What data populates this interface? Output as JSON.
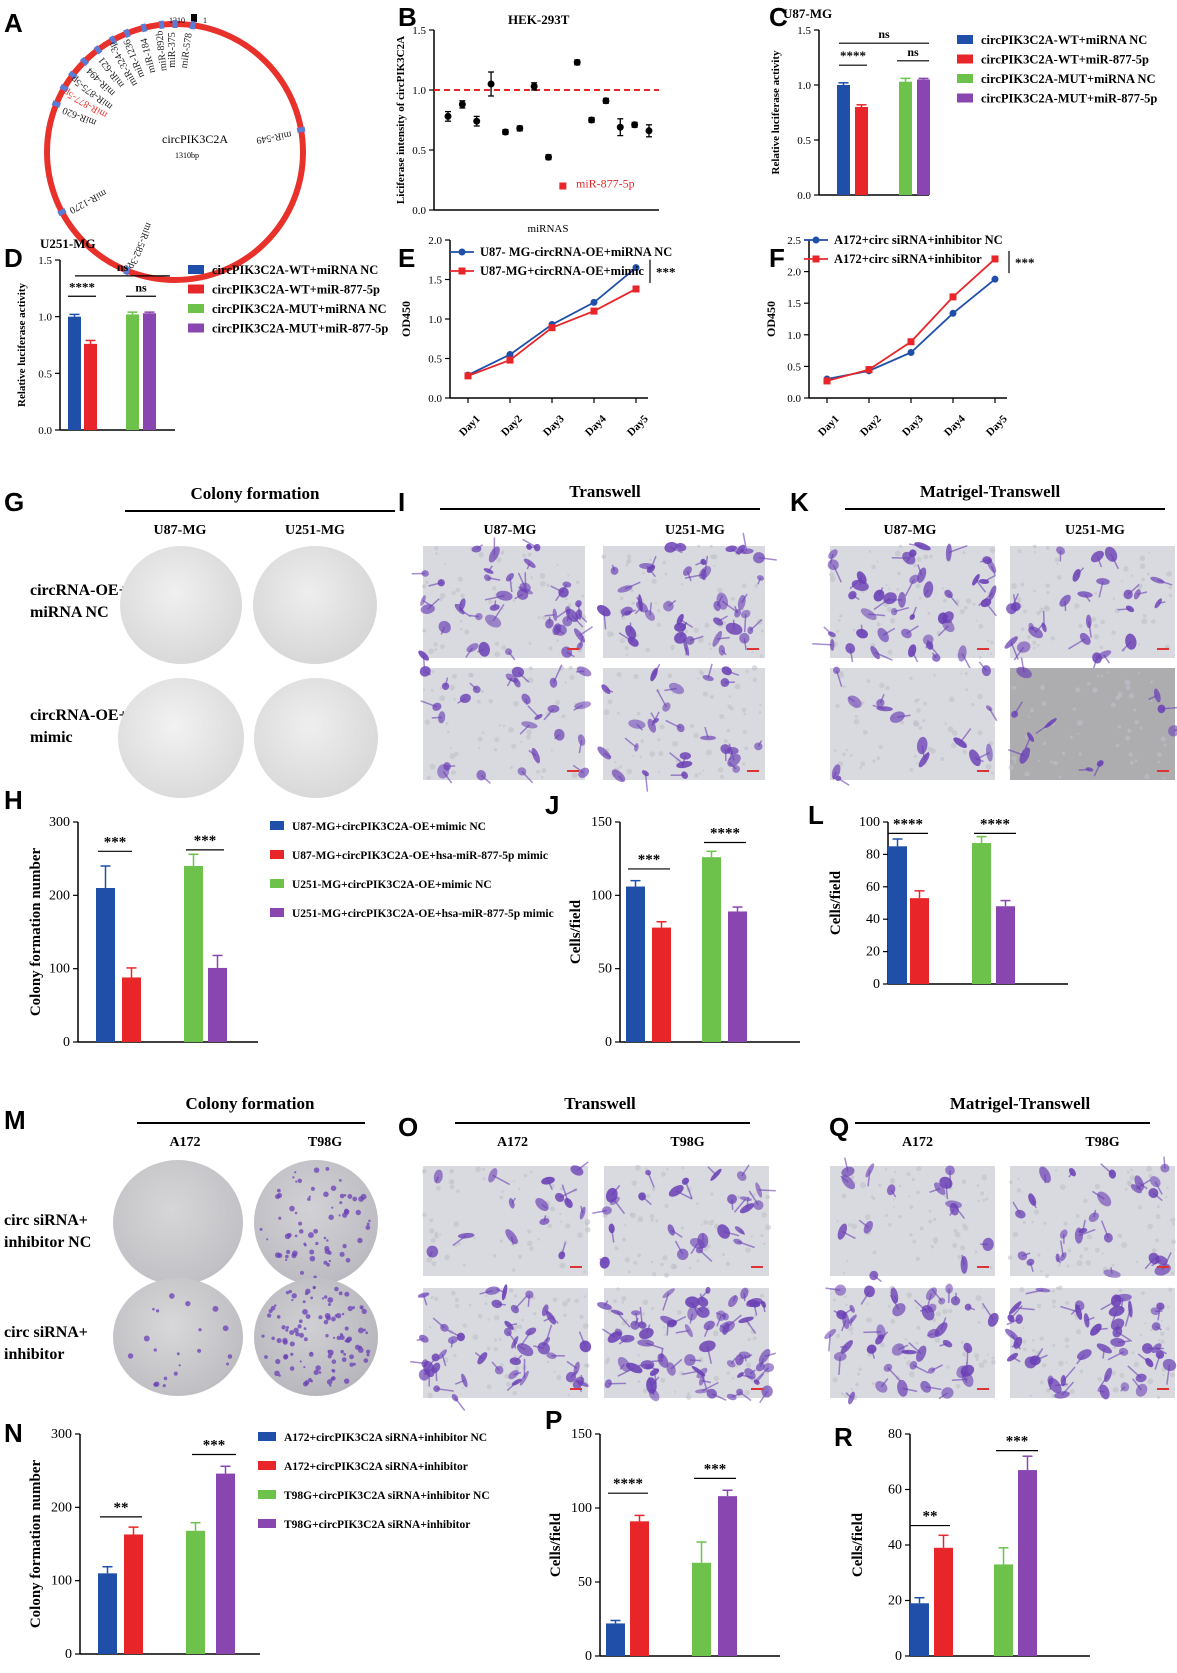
{
  "panels": {
    "A": "A",
    "B": "B",
    "C": "C",
    "D": "D",
    "E": "E",
    "F": "F",
    "G": "G",
    "H": "H",
    "I": "I",
    "J": "J",
    "K": "K",
    "L": "L",
    "M": "M",
    "N": "N",
    "O": "O",
    "P": "P",
    "Q": "Q",
    "R": "R"
  },
  "circle_map": {
    "center_name": "circPIK3C2A",
    "length": "1310bp",
    "top_mark_left": "1310",
    "top_mark_right": "1",
    "mirnas": [
      "miR-578",
      "miR-375",
      "miR-892b",
      "miR-184",
      "miR-1236",
      "miR-324-3p",
      "miR-621",
      "miR-494",
      "miR-875-5p",
      "miR-877-5p",
      "miR-620",
      "miR-1270",
      "miR-582-3p",
      "miR-549"
    ],
    "highlight": "miR-877-5p",
    "highlight_color": "#e8312a",
    "ring_color": "#e8312a",
    "site_color": "#5b7bd5"
  },
  "images": {
    "colony_top": {
      "title": "Colony formation",
      "cols": [
        "U87-MG",
        "U251-MG"
      ],
      "rows": [
        "circRNA-OE+\nmiRNA NC",
        "circRNA-OE+\nmimic"
      ]
    },
    "transwell_top": {
      "title": "Transwell",
      "cols": [
        "U87-MG",
        "U251-MG"
      ]
    },
    "matrigel_top": {
      "title": "Matrigel-Transwell",
      "cols": [
        "U87-MG",
        "U251-MG"
      ]
    },
    "colony_bottom": {
      "title": "Colony formation",
      "cols": [
        "A172",
        "T98G"
      ],
      "rows": [
        "circ siRNA+\ninhibitor NC",
        "circ siRNA+\ninhibitor"
      ]
    },
    "transwell_bottom": {
      "title": "Transwell",
      "cols": [
        "A172",
        "T98G"
      ]
    },
    "matrigel_bottom": {
      "title": "Matrigel-Transwell",
      "cols": [
        "A172",
        "T98G"
      ]
    },
    "stain_color": "#6a3fb5"
  },
  "colors": {
    "blue": "#1f4fa8",
    "red": "#e8262a",
    "green": "#6cc24a",
    "purple": "#8a46b0"
  },
  "chart_data": [
    {
      "id": "B",
      "type": "scatter",
      "title": "HEK-293T",
      "xlabel": "miRNAS",
      "ylabel": "Liciferase intensity of circPIK3C2A",
      "ylim": [
        0,
        1.5
      ],
      "yticks": [
        "0.0",
        "0.5",
        "1.0",
        "1.5"
      ],
      "reference_line": 1.0,
      "points": [
        {
          "v": 0.78,
          "e": 0.04
        },
        {
          "v": 0.88,
          "e": 0.03
        },
        {
          "v": 0.74,
          "e": 0.04
        },
        {
          "v": 1.05,
          "e": 0.1
        },
        {
          "v": 0.65,
          "e": 0.02
        },
        {
          "v": 0.68,
          "e": 0.02
        },
        {
          "v": 1.03,
          "e": 0.03
        },
        {
          "v": 0.44,
          "e": 0.02
        },
        {
          "v": 0.2,
          "e": 0.02,
          "highlight": true
        },
        {
          "v": 1.23,
          "e": 0.02
        },
        {
          "v": 0.75,
          "e": 0.02
        },
        {
          "v": 0.91,
          "e": 0.02
        },
        {
          "v": 0.69,
          "e": 0.07
        },
        {
          "v": 0.71,
          "e": 0.02
        },
        {
          "v": 0.66,
          "e": 0.05
        }
      ],
      "annotation": "miR-877-5p"
    },
    {
      "id": "C",
      "type": "bar",
      "title": "U87-MG",
      "ylabel": "Relative luciferase activity",
      "ylim": [
        0,
        1.5
      ],
      "yticks": [
        "0.0",
        "0.5",
        "1.0",
        "1.5"
      ],
      "series": [
        {
          "name": "circPIK3C2A-WT+miRNA NC",
          "value": 1.0,
          "err": 0.02
        },
        {
          "name": "circPIK3C2A-WT+miR-877-5p",
          "value": 0.8,
          "err": 0.02
        },
        {
          "name": "circPIK3C2A-MUT+miRNA NC",
          "value": 1.03,
          "err": 0.03
        },
        {
          "name": "circPIK3C2A-MUT+miR-877-5p",
          "value": 1.05,
          "err": 0.01
        }
      ],
      "sig": [
        "****",
        "ns",
        "ns"
      ]
    },
    {
      "id": "D",
      "type": "bar",
      "title": "U251-MG",
      "ylabel": "Relative luciferase activity",
      "ylim": [
        0,
        1.5
      ],
      "yticks": [
        "0.0",
        "0.5",
        "1.0",
        "1.5"
      ],
      "series": [
        {
          "name": "circPIK3C2A-WT+miRNA NC",
          "value": 1.0,
          "err": 0.02
        },
        {
          "name": "circPIK3C2A-WT+miR-877-5p",
          "value": 0.76,
          "err": 0.03
        },
        {
          "name": "circPIK3C2A-MUT+miRNA NC",
          "value": 1.02,
          "err": 0.02
        },
        {
          "name": "circPIK3C2A-MUT+miR-877-5p",
          "value": 1.03,
          "err": 0.01
        }
      ],
      "sig": [
        "****",
        "ns",
        "ns"
      ]
    },
    {
      "id": "E",
      "type": "line",
      "ylabel": "OD450",
      "categories": [
        "Day1",
        "Day2",
        "Day3",
        "Day4",
        "Day5"
      ],
      "ylim": [
        0,
        2.0
      ],
      "yticks": [
        "0.0",
        "0.5",
        "1.0",
        "1.5",
        "2.0"
      ],
      "series": [
        {
          "name": "U87- MG-circRNA-OE+miRNA NC",
          "values": [
            0.29,
            0.55,
            0.93,
            1.21,
            1.65
          ],
          "marker": "circle"
        },
        {
          "name": "U87-MG+circRNA-OE+mimic",
          "values": [
            0.28,
            0.48,
            0.89,
            1.1,
            1.38
          ],
          "marker": "square"
        }
      ],
      "sig": "***"
    },
    {
      "id": "F",
      "type": "line",
      "ylabel": "OD450",
      "categories": [
        "Day1",
        "Day2",
        "Day3",
        "Day4",
        "Day5"
      ],
      "ylim": [
        0,
        2.5
      ],
      "yticks": [
        "0.0",
        "0.5",
        "1.0",
        "1.5",
        "2.0",
        "2.5"
      ],
      "series": [
        {
          "name": "A172+circ siRNA+inhibitor NC",
          "values": [
            0.3,
            0.43,
            0.72,
            1.34,
            1.88
          ],
          "marker": "circle"
        },
        {
          "name": "A172+circ siRNA+inhibitor",
          "values": [
            0.27,
            0.45,
            0.89,
            1.6,
            2.2
          ],
          "marker": "square"
        }
      ],
      "sig": "***"
    },
    {
      "id": "H",
      "type": "bar",
      "ylabel": "Colony formation number",
      "ylim": [
        0,
        300
      ],
      "yticks": [
        "0",
        "100",
        "200",
        "300"
      ],
      "series": [
        {
          "name": "U87-MG+circPIK3C2A-OE+mimic NC",
          "value": 210,
          "err": 30
        },
        {
          "name": "U87-MG+circPIK3C2A-OE+hsa-miR-877-5p mimic",
          "value": 88,
          "err": 13
        },
        {
          "name": "U251-MG+circPIK3C2A-OE+mimic NC",
          "value": 240,
          "err": 16
        },
        {
          "name": "U251-MG+circPIK3C2A-OE+hsa-miR-877-5p mimic",
          "value": 101,
          "err": 17
        }
      ],
      "sig": [
        "***",
        "***"
      ]
    },
    {
      "id": "J",
      "type": "bar",
      "ylabel": "Cells/field",
      "ylim": [
        0,
        150
      ],
      "yticks": [
        "0",
        "50",
        "100",
        "150"
      ],
      "series": [
        {
          "value": 106,
          "err": 4
        },
        {
          "value": 78,
          "err": 4
        },
        {
          "value": 126,
          "err": 4
        },
        {
          "value": 89,
          "err": 3
        }
      ],
      "sig": [
        "***",
        "****"
      ]
    },
    {
      "id": "L",
      "type": "bar",
      "ylabel": "Cells/field",
      "ylim": [
        0,
        100
      ],
      "yticks": [
        "0",
        "20",
        "40",
        "60",
        "80",
        "100"
      ],
      "series": [
        {
          "value": 85,
          "err": 4.5
        },
        {
          "value": 53,
          "err": 4.5
        },
        {
          "value": 87,
          "err": 4
        },
        {
          "value": 48,
          "err": 3.5
        }
      ],
      "sig": [
        "****",
        "****"
      ]
    },
    {
      "id": "N",
      "type": "bar",
      "ylabel": "Colony formation number",
      "ylim": [
        0,
        300
      ],
      "yticks": [
        "0",
        "100",
        "200",
        "300"
      ],
      "series": [
        {
          "name": "A172+circPIK3C2A siRNA+inhibitor NC",
          "value": 110,
          "err": 9
        },
        {
          "name": "A172+circPIK3C2A siRNA+inhibitor",
          "value": 163,
          "err": 10
        },
        {
          "name": "T98G+circPIK3C2A siRNA+inhibitor NC",
          "value": 168,
          "err": 11
        },
        {
          "name": "T98G+circPIK3C2A siRNA+inhibitor",
          "value": 246,
          "err": 10
        }
      ],
      "sig": [
        "**",
        "***"
      ]
    },
    {
      "id": "P",
      "type": "bar",
      "ylabel": "Cells/field",
      "ylim": [
        0,
        150
      ],
      "yticks": [
        "0",
        "50",
        "100",
        "150"
      ],
      "series": [
        {
          "value": 22,
          "err": 2
        },
        {
          "value": 91,
          "err": 4
        },
        {
          "value": 63,
          "err": 14
        },
        {
          "value": 108,
          "err": 4
        }
      ],
      "sig": [
        "****",
        "***"
      ]
    },
    {
      "id": "R",
      "type": "bar",
      "ylabel": "Cells/field",
      "ylim": [
        0,
        80
      ],
      "yticks": [
        "0",
        "20",
        "40",
        "60",
        "80"
      ],
      "series": [
        {
          "value": 19,
          "err": 2
        },
        {
          "value": 39,
          "err": 4.5
        },
        {
          "value": 33,
          "err": 6
        },
        {
          "value": 67,
          "err": 5
        }
      ],
      "sig": [
        "**",
        "***"
      ]
    }
  ]
}
